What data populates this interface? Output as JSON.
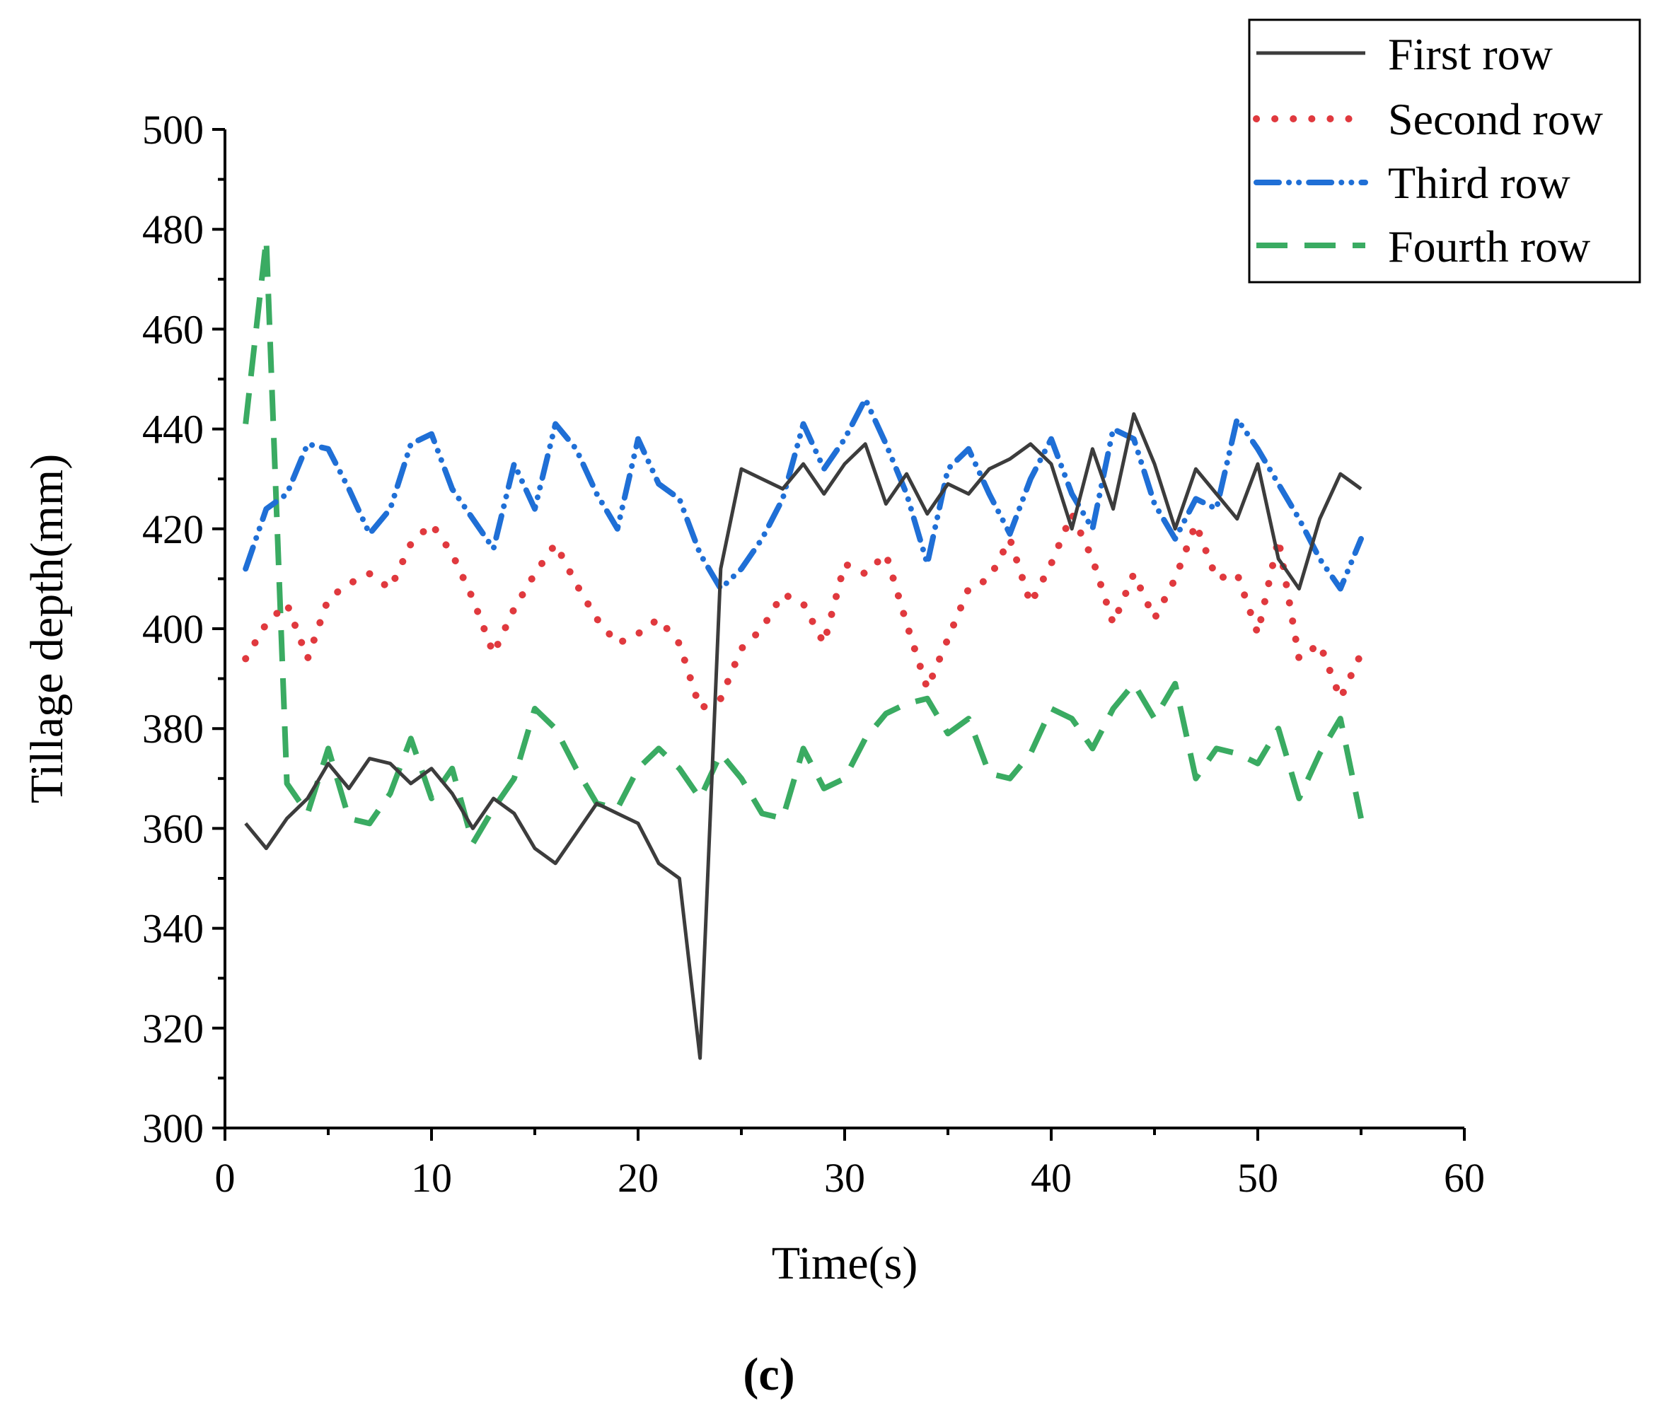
{
  "chart_data": {
    "type": "line",
    "title": "",
    "xlabel": "Time(s)",
    "ylabel": "Tillage depth(mm)",
    "xlim": [
      0,
      60
    ],
    "ylim": [
      300,
      500
    ],
    "xticks": [
      0,
      10,
      20,
      30,
      40,
      50,
      60
    ],
    "yticks": [
      300,
      320,
      340,
      360,
      380,
      400,
      420,
      440,
      460,
      480,
      500
    ],
    "grid": false,
    "legend_position": "top-right",
    "panel_label": "(c)",
    "x": [
      1,
      2,
      3,
      4,
      5,
      6,
      7,
      8,
      9,
      10,
      11,
      12,
      13,
      14,
      15,
      16,
      17,
      18,
      19,
      20,
      21,
      22,
      23,
      24,
      25,
      26,
      27,
      28,
      29,
      30,
      31,
      32,
      33,
      34,
      35,
      36,
      37,
      38,
      39,
      40,
      41,
      42,
      43,
      44,
      45,
      46,
      47,
      48,
      49,
      50,
      51,
      52,
      53,
      54,
      55
    ],
    "series": [
      {
        "name": "First row",
        "color": "#3c3c3c",
        "style": "solid",
        "values": [
          361,
          356,
          362,
          366,
          373,
          368,
          374,
          373,
          369,
          372,
          367,
          360,
          366,
          363,
          356,
          353,
          359,
          365,
          363,
          361,
          353,
          350,
          314,
          412,
          432,
          430,
          428,
          433,
          427,
          433,
          437,
          425,
          431,
          423,
          429,
          427,
          432,
          434,
          437,
          433,
          420,
          436,
          424,
          443,
          433,
          420,
          432,
          427,
          422,
          433,
          414,
          408,
          422,
          431,
          428
        ]
      },
      {
        "name": "Second row",
        "color": "#e0393e",
        "style": "dotted",
        "values": [
          394,
          401,
          405,
          394,
          406,
          409,
          411,
          408,
          417,
          421,
          415,
          406,
          395,
          404,
          411,
          417,
          409,
          402,
          397,
          399,
          402,
          397,
          384,
          386,
          396,
          400,
          407,
          405,
          397,
          413,
          411,
          415,
          401,
          388,
          398,
          408,
          410,
          418,
          405,
          413,
          423,
          414,
          401,
          411,
          402,
          410,
          421,
          410,
          411,
          399,
          418,
          394,
          397,
          386,
          395
        ]
      },
      {
        "name": "Third row",
        "color": "#1f6fd6",
        "style": "dashdot",
        "values": [
          412,
          424,
          427,
          437,
          436,
          428,
          419,
          424,
          437,
          439,
          428,
          422,
          416,
          433,
          424,
          441,
          436,
          427,
          420,
          438,
          429,
          426,
          415,
          408,
          412,
          418,
          426,
          441,
          432,
          438,
          446,
          437,
          427,
          413,
          432,
          436,
          427,
          419,
          430,
          438,
          427,
          420,
          440,
          438,
          425,
          418,
          426,
          424,
          442,
          436,
          429,
          422,
          414,
          408,
          418
        ]
      },
      {
        "name": "Fourth row",
        "color": "#3aab62",
        "style": "dashed",
        "values": [
          441,
          478,
          369,
          363,
          376,
          362,
          361,
          367,
          378,
          366,
          372,
          357,
          364,
          370,
          384,
          380,
          372,
          365,
          364,
          372,
          376,
          372,
          366,
          375,
          370,
          363,
          362,
          376,
          368,
          370,
          378,
          383,
          385,
          386,
          379,
          382,
          371,
          370,
          375,
          384,
          382,
          376,
          384,
          389,
          382,
          389,
          370,
          376,
          375,
          373,
          380,
          366,
          375,
          382,
          362
        ]
      }
    ]
  }
}
